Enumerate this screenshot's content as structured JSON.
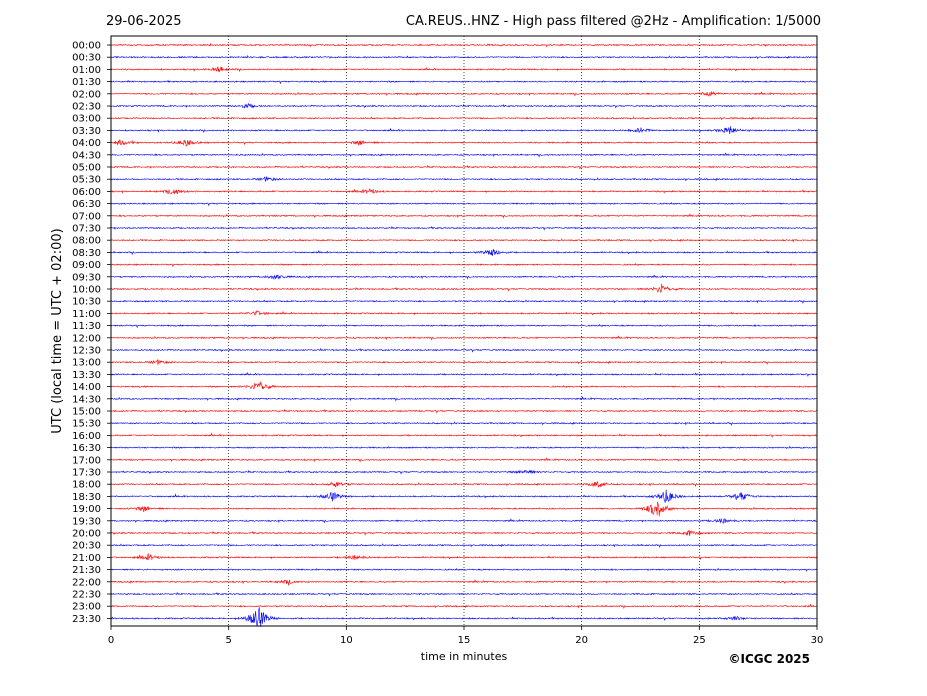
{
  "chart_data": {
    "type": "line",
    "date": "29-06-2025",
    "title": "CA.REUS..HNZ - High pass filtered @2Hz - Amplification: 1/5000",
    "xlabel": "time in minutes",
    "ylabel": "UTC (local time = UTC + 02:00)",
    "copyright": "©ICGC 2025",
    "xlim": [
      0,
      30
    ],
    "x_ticks": [
      "0",
      "5",
      "10",
      "15",
      "20",
      "25",
      "30"
    ],
    "x_tick_values": [
      0,
      5,
      10,
      15,
      20,
      25,
      30
    ],
    "grid_x": [
      5,
      10,
      15,
      20,
      25
    ],
    "row_labels": [
      "00:00",
      "00:30",
      "01:00",
      "01:30",
      "02:00",
      "02:30",
      "03:00",
      "03:30",
      "04:00",
      "04:30",
      "05:00",
      "05:30",
      "06:00",
      "06:30",
      "07:00",
      "07:30",
      "08:00",
      "08:30",
      "09:00",
      "09:30",
      "10:00",
      "10:30",
      "11:00",
      "11:30",
      "12:00",
      "12:30",
      "13:00",
      "13:30",
      "14:00",
      "14:30",
      "15:00",
      "15:30",
      "16:00",
      "16:30",
      "17:00",
      "17:30",
      "18:00",
      "18:30",
      "19:00",
      "19:30",
      "20:00",
      "20:30",
      "21:00",
      "21:30",
      "22:00",
      "22:30",
      "23:00",
      "23:30"
    ],
    "trace_colors": [
      "#ff0000",
      "#0000ff"
    ],
    "events": [
      {
        "row": 2,
        "minute": 4.6,
        "amp": 0.5
      },
      {
        "row": 4,
        "minute": 25.4,
        "amp": 0.5
      },
      {
        "row": 5,
        "minute": 5.8,
        "amp": 0.4
      },
      {
        "row": 7,
        "minute": 22.5,
        "amp": 0.5
      },
      {
        "row": 7,
        "minute": 26.3,
        "amp": 0.8
      },
      {
        "row": 8,
        "minute": 0.4,
        "amp": 0.5
      },
      {
        "row": 8,
        "minute": 3.2,
        "amp": 0.6
      },
      {
        "row": 8,
        "minute": 10.6,
        "amp": 0.4
      },
      {
        "row": 11,
        "minute": 6.6,
        "amp": 0.4
      },
      {
        "row": 12,
        "minute": 2.7,
        "amp": 0.6
      },
      {
        "row": 12,
        "minute": 11.0,
        "amp": 0.4
      },
      {
        "row": 17,
        "minute": 16.2,
        "amp": 0.7
      },
      {
        "row": 19,
        "minute": 7.0,
        "amp": 0.5
      },
      {
        "row": 20,
        "minute": 23.4,
        "amp": 0.9
      },
      {
        "row": 22,
        "minute": 6.2,
        "amp": 0.4
      },
      {
        "row": 26,
        "minute": 2.0,
        "amp": 0.4
      },
      {
        "row": 28,
        "minute": 6.3,
        "amp": 1.2
      },
      {
        "row": 35,
        "minute": 17.6,
        "amp": 0.5
      },
      {
        "row": 36,
        "minute": 20.7,
        "amp": 0.7
      },
      {
        "row": 36,
        "minute": 9.6,
        "amp": 0.5
      },
      {
        "row": 37,
        "minute": 9.4,
        "amp": 0.9
      },
      {
        "row": 37,
        "minute": 23.6,
        "amp": 1.3
      },
      {
        "row": 37,
        "minute": 26.8,
        "amp": 0.8
      },
      {
        "row": 38,
        "minute": 23.2,
        "amp": 2.0
      },
      {
        "row": 38,
        "minute": 1.4,
        "amp": 0.5
      },
      {
        "row": 39,
        "minute": 26.0,
        "amp": 0.5
      },
      {
        "row": 40,
        "minute": 24.6,
        "amp": 0.5
      },
      {
        "row": 42,
        "minute": 1.6,
        "amp": 0.5
      },
      {
        "row": 42,
        "minute": 10.4,
        "amp": 0.5
      },
      {
        "row": 44,
        "minute": 7.5,
        "amp": 0.4
      },
      {
        "row": 47,
        "minute": 6.25,
        "amp": 2.5
      },
      {
        "row": 47,
        "minute": 26.5,
        "amp": 0.4
      }
    ]
  }
}
